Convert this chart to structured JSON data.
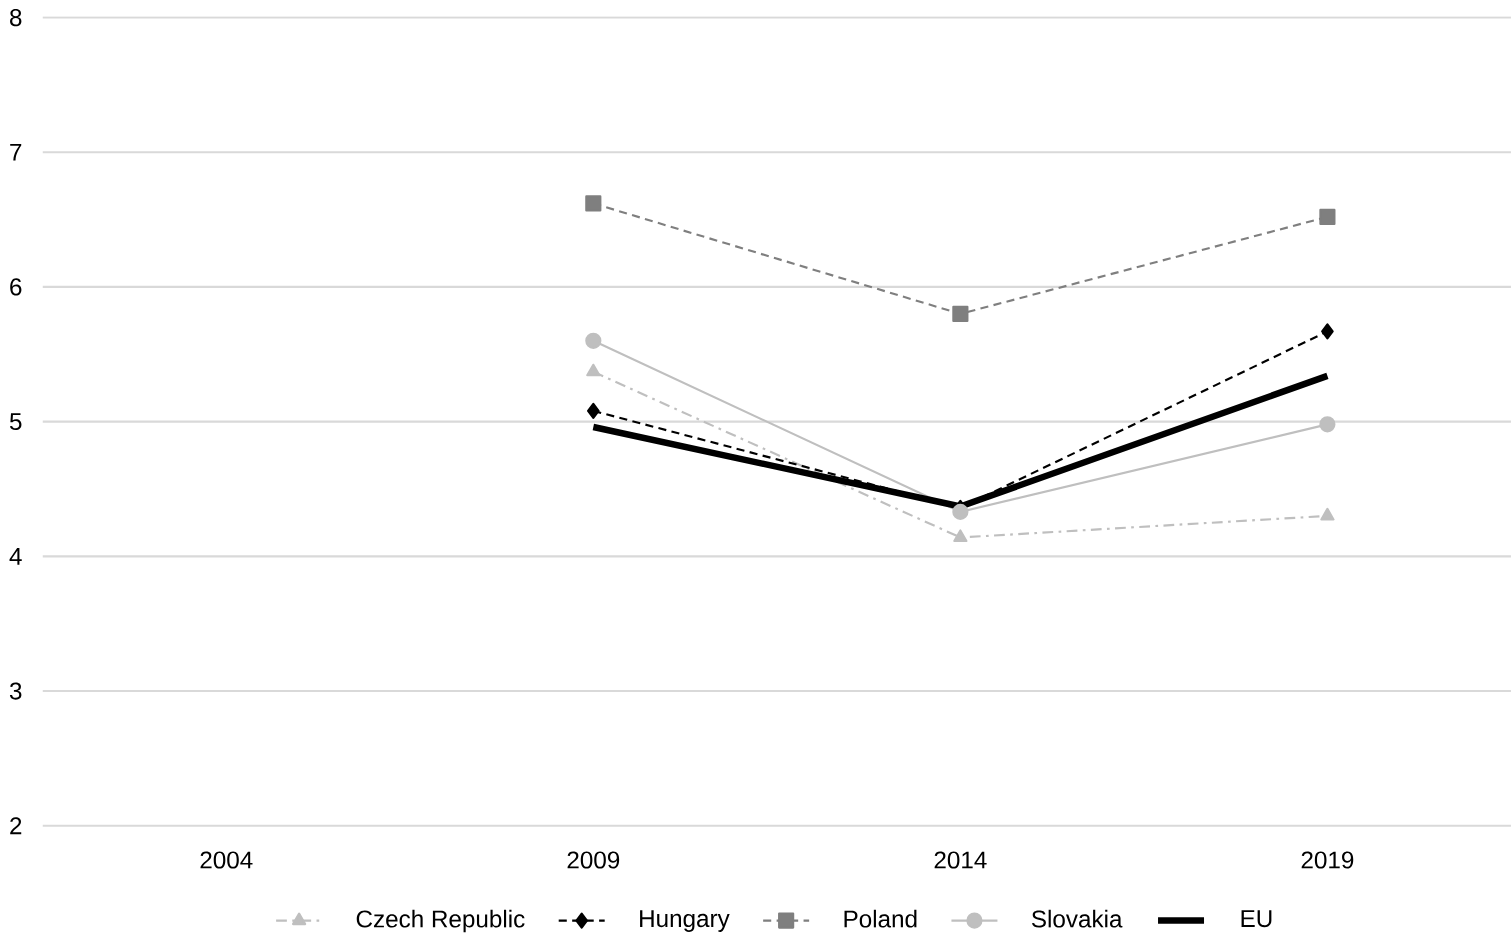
{
  "chart_data": {
    "type": "line",
    "categories": [
      "2004",
      "2009",
      "2014",
      "2019"
    ],
    "ylim": [
      2,
      8
    ],
    "yticks": [
      2,
      3,
      4,
      5,
      6,
      7,
      8
    ],
    "grid": "y",
    "legend": "bottom",
    "series": [
      {
        "name": "Czech Republic",
        "color": "#bfbfbf",
        "marker": "triangle",
        "line_style": "dashdot",
        "values": [
          null,
          5.37,
          4.14,
          4.3
        ]
      },
      {
        "name": "Hungary",
        "color": "#000000",
        "marker": "diamond",
        "line_style": "dashed",
        "values": [
          null,
          5.08,
          4.36,
          5.67
        ]
      },
      {
        "name": "Poland",
        "color": "#7f7f7f",
        "marker": "square",
        "line_style": "dashed",
        "values": [
          null,
          6.62,
          5.8,
          6.52
        ]
      },
      {
        "name": "Slovakia",
        "color": "#bfbfbf",
        "marker": "circle",
        "line_style": "solid",
        "values": [
          null,
          5.6,
          4.33,
          4.98
        ]
      },
      {
        "name": "EU",
        "color": "#000000",
        "marker": "none",
        "line_style": "solid",
        "values": [
          null,
          4.96,
          4.37,
          5.34
        ]
      }
    ]
  }
}
